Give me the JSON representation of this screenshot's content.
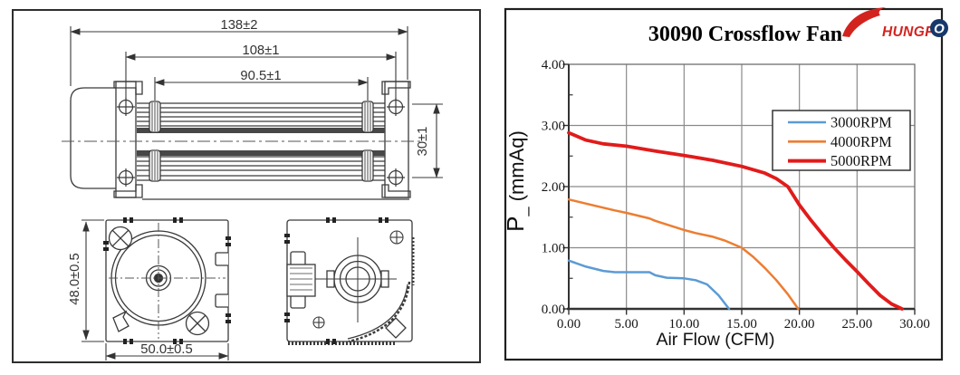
{
  "drawing_panel": {
    "dimensions": {
      "overall_length": "138±2",
      "mounting_hole_pitch": "108±1",
      "blade_length": "90.5±1",
      "barrel_height": "30±1",
      "front_height": "48.0±0.5",
      "front_width": "50.0±0.5"
    },
    "line_color": "#3a3a3a"
  },
  "chart_panel": {
    "title": "30090 Crossflow Fan",
    "logo": {
      "text_main": "HUNGF",
      "text_globe": "O",
      "red": "#d3231f",
      "navy": "#16386b"
    },
    "ylabel_p": "P",
    "ylabel_sub": "_",
    "ylabel_unit": " (mmAq)"
  },
  "chart_data": {
    "type": "line",
    "title": "30090 Crossflow Fan",
    "xlabel": "Air Flow (CFM)",
    "ylabel": "P_ (mmAq)",
    "xlim": [
      0,
      30
    ],
    "ylim": [
      0,
      4
    ],
    "grid": true,
    "legend_position": "upper right",
    "xticks": [
      0,
      5,
      10,
      15,
      20,
      25,
      30
    ],
    "yticks": [
      0,
      1,
      2,
      3,
      4
    ],
    "x_tick_labels": [
      "0.00",
      "5.00",
      "10.00",
      "15.00",
      "20.00",
      "25.00",
      "30.00"
    ],
    "y_tick_labels": [
      "0.00",
      "1.00",
      "2.00",
      "3.00",
      "4.00"
    ],
    "series": [
      {
        "name": "3000RPM",
        "color": "#5b9bd5",
        "width": 2.5,
        "points": [
          [
            0,
            0.79
          ],
          [
            1.5,
            0.69
          ],
          [
            3,
            0.62
          ],
          [
            4,
            0.6
          ],
          [
            6,
            0.6
          ],
          [
            7,
            0.6
          ],
          [
            7.5,
            0.55
          ],
          [
            8.5,
            0.51
          ],
          [
            10,
            0.5
          ],
          [
            11,
            0.47
          ],
          [
            12,
            0.4
          ],
          [
            13,
            0.22
          ],
          [
            13.9,
            0.0
          ]
        ]
      },
      {
        "name": "4000RPM",
        "color": "#ed7d31",
        "width": 2.5,
        "points": [
          [
            0,
            1.79
          ],
          [
            2,
            1.7
          ],
          [
            4,
            1.61
          ],
          [
            5,
            1.57
          ],
          [
            7,
            1.48
          ],
          [
            7.5,
            1.44
          ],
          [
            10,
            1.29
          ],
          [
            11,
            1.24
          ],
          [
            12.5,
            1.18
          ],
          [
            13.5,
            1.12
          ],
          [
            15,
            1.0
          ],
          [
            16,
            0.85
          ],
          [
            17,
            0.67
          ],
          [
            18,
            0.47
          ],
          [
            19,
            0.24
          ],
          [
            19.9,
            0.0
          ]
        ]
      },
      {
        "name": "5000RPM",
        "color": "#e11b1b",
        "width": 3.8,
        "points": [
          [
            0,
            2.88
          ],
          [
            1.5,
            2.76
          ],
          [
            3,
            2.7
          ],
          [
            5,
            2.66
          ],
          [
            7.5,
            2.58
          ],
          [
            10,
            2.51
          ],
          [
            12.5,
            2.43
          ],
          [
            15,
            2.33
          ],
          [
            17,
            2.22
          ],
          [
            18,
            2.13
          ],
          [
            19,
            2.0
          ],
          [
            20,
            1.7
          ],
          [
            21,
            1.45
          ],
          [
            22,
            1.22
          ],
          [
            23,
            1.0
          ],
          [
            24,
            0.8
          ],
          [
            25,
            0.61
          ],
          [
            26,
            0.41
          ],
          [
            27,
            0.22
          ],
          [
            28,
            0.08
          ],
          [
            28.9,
            0.0
          ]
        ]
      }
    ]
  }
}
